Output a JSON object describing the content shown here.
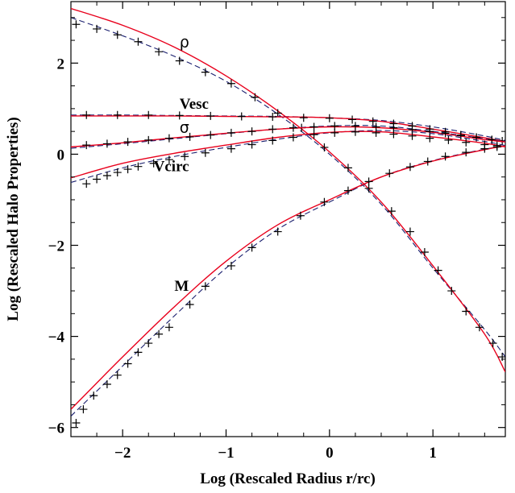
{
  "chart_data": {
    "type": "line",
    "xlabel": "Log (Rescaled Radius r/rc)",
    "ylabel": "Log (Rescaled Halo Properties)",
    "xlim": [
      -2.5,
      1.7
    ],
    "ylim": [
      -6.2,
      3.35
    ],
    "x_ticks": [
      -2,
      -1,
      0,
      1
    ],
    "y_ticks": [
      2,
      0,
      -2,
      -4,
      -6
    ],
    "x_tick_labels": [
      "−2",
      "−1",
      "0",
      "1"
    ],
    "y_tick_labels": [
      "2",
      "0",
      "−2",
      "−4",
      "−6"
    ],
    "grid": false,
    "legend": "none",
    "series": [
      {
        "name": "ρ",
        "label_at": [
          -1.45,
          2.35
        ],
        "model": [
          [
            -2.5,
            3.2
          ],
          [
            -2.0,
            2.83
          ],
          [
            -1.5,
            2.35
          ],
          [
            -1.0,
            1.72
          ],
          [
            -0.5,
            0.95
          ],
          [
            0.0,
            0.05
          ],
          [
            0.5,
            -1.05
          ],
          [
            1.0,
            -2.45
          ],
          [
            1.5,
            -3.95
          ],
          [
            1.7,
            -4.78
          ]
        ],
        "fit": [
          [
            -2.5,
            3.0
          ],
          [
            -2.0,
            2.6
          ],
          [
            -1.5,
            2.15
          ],
          [
            -1.0,
            1.6
          ],
          [
            -0.5,
            0.88
          ],
          [
            0.0,
            0.0
          ],
          [
            0.5,
            -1.1
          ],
          [
            1.0,
            -2.5
          ],
          [
            1.5,
            -3.85
          ],
          [
            1.7,
            -4.45
          ]
        ],
        "data": [
          [
            -2.45,
            2.85
          ],
          [
            -2.25,
            2.75
          ],
          [
            -2.05,
            2.62
          ],
          [
            -1.85,
            2.47
          ],
          [
            -1.65,
            2.25
          ],
          [
            -1.45,
            2.05
          ],
          [
            -1.2,
            1.8
          ],
          [
            -0.95,
            1.55
          ],
          [
            -0.72,
            1.25
          ],
          [
            -0.5,
            0.9
          ],
          [
            -0.27,
            0.58
          ],
          [
            -0.05,
            0.15
          ],
          [
            0.18,
            -0.3
          ],
          [
            0.38,
            -0.75
          ],
          [
            0.6,
            -1.25
          ],
          [
            0.78,
            -1.7
          ],
          [
            0.92,
            -2.15
          ],
          [
            1.05,
            -2.55
          ],
          [
            1.18,
            -3.0
          ],
          [
            1.32,
            -3.45
          ],
          [
            1.45,
            -3.8
          ],
          [
            1.58,
            -4.15
          ],
          [
            1.67,
            -4.45
          ]
        ]
      },
      {
        "name": "Vesc",
        "label_at": [
          -1.45,
          1.0
        ],
        "model": [
          [
            -2.5,
            0.84
          ],
          [
            -2.0,
            0.84
          ],
          [
            -1.5,
            0.84
          ],
          [
            -1.0,
            0.83
          ],
          [
            -0.5,
            0.82
          ],
          [
            0.0,
            0.8
          ],
          [
            0.5,
            0.72
          ],
          [
            1.0,
            0.55
          ],
          [
            1.5,
            0.36
          ],
          [
            1.7,
            0.28
          ]
        ],
        "fit": [
          [
            -2.5,
            0.86
          ],
          [
            -2.0,
            0.86
          ],
          [
            -1.5,
            0.85
          ],
          [
            -1.0,
            0.84
          ],
          [
            -0.5,
            0.83
          ],
          [
            0.0,
            0.8
          ],
          [
            0.5,
            0.74
          ],
          [
            1.0,
            0.6
          ],
          [
            1.5,
            0.4
          ],
          [
            1.7,
            0.3
          ]
        ],
        "data": [
          [
            -2.35,
            0.86
          ],
          [
            -2.05,
            0.86
          ],
          [
            -1.75,
            0.86
          ],
          [
            -1.45,
            0.85
          ],
          [
            -1.15,
            0.84
          ],
          [
            -0.85,
            0.83
          ],
          [
            -0.55,
            0.82
          ],
          [
            -0.25,
            0.8
          ],
          [
            0.0,
            0.79
          ],
          [
            0.22,
            0.76
          ],
          [
            0.42,
            0.72
          ],
          [
            0.62,
            0.67
          ],
          [
            0.8,
            0.62
          ],
          [
            0.97,
            0.55
          ],
          [
            1.12,
            0.49
          ],
          [
            1.27,
            0.42
          ],
          [
            1.42,
            0.37
          ],
          [
            1.57,
            0.31
          ],
          [
            1.67,
            0.29
          ]
        ]
      },
      {
        "name": "σ",
        "label_at": [
          -1.45,
          0.48
        ],
        "model": [
          [
            -2.5,
            0.16
          ],
          [
            -2.0,
            0.25
          ],
          [
            -1.5,
            0.36
          ],
          [
            -1.0,
            0.46
          ],
          [
            -0.5,
            0.55
          ],
          [
            0.0,
            0.6
          ],
          [
            0.5,
            0.58
          ],
          [
            1.0,
            0.48
          ],
          [
            1.5,
            0.32
          ],
          [
            1.7,
            0.27
          ]
        ],
        "fit": [
          [
            -2.5,
            0.13
          ],
          [
            -2.0,
            0.23
          ],
          [
            -1.5,
            0.34
          ],
          [
            -1.0,
            0.45
          ],
          [
            -0.5,
            0.55
          ],
          [
            0.0,
            0.62
          ],
          [
            0.5,
            0.62
          ],
          [
            1.0,
            0.5
          ],
          [
            1.5,
            0.34
          ],
          [
            1.7,
            0.28
          ]
        ],
        "data": [
          [
            -2.35,
            0.2
          ],
          [
            -2.15,
            0.23
          ],
          [
            -1.95,
            0.27
          ],
          [
            -1.75,
            0.31
          ],
          [
            -1.55,
            0.35
          ],
          [
            -1.35,
            0.38
          ],
          [
            -1.15,
            0.42
          ],
          [
            -0.95,
            0.47
          ],
          [
            -0.75,
            0.5
          ],
          [
            -0.55,
            0.55
          ],
          [
            -0.35,
            0.58
          ],
          [
            -0.15,
            0.6
          ],
          [
            0.05,
            0.62
          ],
          [
            0.25,
            0.62
          ],
          [
            0.45,
            0.6
          ],
          [
            0.62,
            0.58
          ],
          [
            0.8,
            0.54
          ],
          [
            0.97,
            0.5
          ],
          [
            1.12,
            0.46
          ],
          [
            1.27,
            0.41
          ],
          [
            1.42,
            0.37
          ],
          [
            1.57,
            0.32
          ]
        ]
      },
      {
        "name": "Vcirc",
        "label_at": [
          -1.7,
          -0.37
        ],
        "model": [
          [
            -2.5,
            -0.52
          ],
          [
            -2.0,
            -0.2
          ],
          [
            -1.5,
            0.02
          ],
          [
            -1.0,
            0.2
          ],
          [
            -0.5,
            0.37
          ],
          [
            0.0,
            0.48
          ],
          [
            0.5,
            0.49
          ],
          [
            1.0,
            0.38
          ],
          [
            1.5,
            0.24
          ],
          [
            1.7,
            0.16
          ]
        ],
        "fit": [
          [
            -2.5,
            -0.62
          ],
          [
            -2.0,
            -0.3
          ],
          [
            -1.5,
            -0.05
          ],
          [
            -1.0,
            0.15
          ],
          [
            -0.5,
            0.33
          ],
          [
            0.0,
            0.47
          ],
          [
            0.5,
            0.52
          ],
          [
            1.0,
            0.45
          ],
          [
            1.5,
            0.28
          ],
          [
            1.7,
            0.19
          ]
        ],
        "data": [
          [
            -2.35,
            -0.65
          ],
          [
            -2.25,
            -0.55
          ],
          [
            -2.15,
            -0.47
          ],
          [
            -2.05,
            -0.4
          ],
          [
            -1.95,
            -0.33
          ],
          [
            -1.85,
            -0.27
          ],
          [
            -1.7,
            -0.2
          ],
          [
            -1.55,
            -0.12
          ],
          [
            -1.4,
            -0.05
          ],
          [
            -1.2,
            0.03
          ],
          [
            -0.95,
            0.12
          ],
          [
            -0.75,
            0.21
          ],
          [
            -0.55,
            0.3
          ],
          [
            -0.35,
            0.37
          ],
          [
            -0.15,
            0.43
          ],
          [
            0.05,
            0.47
          ],
          [
            0.25,
            0.49
          ],
          [
            0.45,
            0.47
          ],
          [
            0.62,
            0.44
          ],
          [
            0.8,
            0.4
          ],
          [
            0.97,
            0.35
          ],
          [
            1.15,
            0.31
          ],
          [
            1.32,
            0.26
          ],
          [
            1.5,
            0.21
          ],
          [
            1.62,
            0.19
          ]
        ]
      },
      {
        "name": "M",
        "label_at": [
          -1.5,
          -3.0
        ],
        "model": [
          [
            -2.5,
            -5.6
          ],
          [
            -2.0,
            -4.45
          ],
          [
            -1.5,
            -3.35
          ],
          [
            -1.0,
            -2.35
          ],
          [
            -0.5,
            -1.55
          ],
          [
            0.0,
            -1.0
          ],
          [
            0.5,
            -0.5
          ],
          [
            1.0,
            -0.15
          ],
          [
            1.5,
            0.1
          ],
          [
            1.7,
            0.18
          ]
        ],
        "fit": [
          [
            -2.5,
            -5.75
          ],
          [
            -2.0,
            -4.65
          ],
          [
            -1.5,
            -3.55
          ],
          [
            -1.0,
            -2.5
          ],
          [
            -0.5,
            -1.65
          ],
          [
            0.0,
            -1.05
          ],
          [
            0.5,
            -0.5
          ],
          [
            1.0,
            -0.14
          ],
          [
            1.5,
            0.11
          ],
          [
            1.7,
            0.18
          ]
        ],
        "data": [
          [
            -2.45,
            -5.9
          ],
          [
            -2.38,
            -5.6
          ],
          [
            -2.28,
            -5.3
          ],
          [
            -2.15,
            -5.05
          ],
          [
            -2.05,
            -4.85
          ],
          [
            -1.95,
            -4.6
          ],
          [
            -1.85,
            -4.35
          ],
          [
            -1.75,
            -4.15
          ],
          [
            -1.65,
            -3.95
          ],
          [
            -1.55,
            -3.8
          ],
          [
            -1.35,
            -3.3
          ],
          [
            -1.2,
            -2.9
          ],
          [
            -0.95,
            -2.45
          ],
          [
            -0.75,
            -2.05
          ],
          [
            -0.5,
            -1.7
          ],
          [
            -0.28,
            -1.35
          ],
          [
            -0.05,
            -1.05
          ],
          [
            0.18,
            -0.8
          ],
          [
            0.38,
            -0.6
          ],
          [
            0.58,
            -0.42
          ],
          [
            0.78,
            -0.28
          ],
          [
            0.95,
            -0.16
          ],
          [
            1.12,
            -0.05
          ],
          [
            1.32,
            0.04
          ],
          [
            1.5,
            0.12
          ],
          [
            1.62,
            0.16
          ]
        ]
      }
    ],
    "colors": {
      "model": "#e8001c",
      "fit": "#1a1f6e",
      "markers": "#000000",
      "axes": "#000000"
    }
  }
}
